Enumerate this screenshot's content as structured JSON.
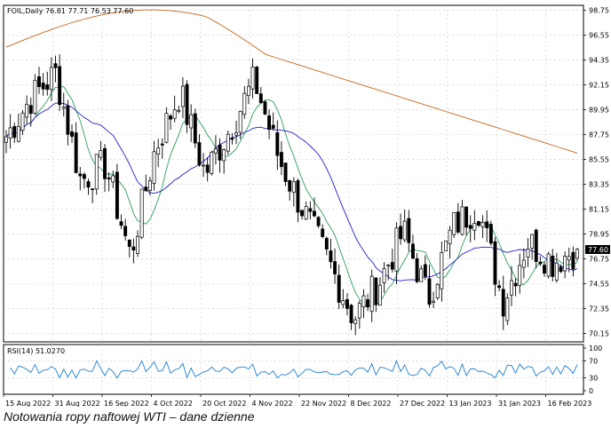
{
  "chart_data": {
    "type": "candlestick",
    "header": "FOIL,Daily  76.81 77.71 76.53 77.60",
    "symbol": "FOIL",
    "timeframe": "Daily",
    "last_ohlc": {
      "open": 76.81,
      "high": 77.71,
      "low": 76.53,
      "close": 77.6
    },
    "last_price_label": "77.60",
    "price_axis": {
      "ticks": [
        "98.75",
        "96.55",
        "94.35",
        "92.15",
        "89.95",
        "87.75",
        "85.55",
        "83.35",
        "81.15",
        "78.95",
        "76.75",
        "74.55",
        "72.35",
        "70.15"
      ],
      "ylim": [
        69.4,
        99.2
      ]
    },
    "x_axis": {
      "ticks": [
        "15 Aug 2022",
        "31 Aug 2022",
        "16 Sep 2022",
        "4 Oct 2022",
        "20 Oct 2022",
        "4 Nov 2022",
        "22 Nov 2022",
        "8 Dec 2022",
        "27 Dec 2022",
        "13 Jan 2023",
        "31 Jan 2023",
        "16 Feb 2023"
      ]
    },
    "grid": true,
    "rsi": {
      "label": "RSI(14) 51.0270",
      "ticks": [
        "100",
        "70",
        "30",
        "0"
      ],
      "ylim": [
        0,
        100
      ]
    },
    "candle_keys": [
      {
        "date": "15 Aug 2022",
        "close": 87.6
      },
      {
        "date": "23 Aug 2022",
        "close": 91.0
      },
      {
        "date": "31 Aug 2022",
        "close": 93.2
      },
      {
        "date": "8 Sep 2022",
        "close": 83.7
      },
      {
        "date": "16 Sep 2022",
        "close": 85.1
      },
      {
        "date": "26 Sep 2022",
        "close": 77.0
      },
      {
        "date": "4 Oct 2022",
        "close": 86.5
      },
      {
        "date": "10 Oct 2022",
        "close": 91.5
      },
      {
        "date": "20 Oct 2022",
        "close": 84.3
      },
      {
        "date": "28 Oct 2022",
        "close": 88.2
      },
      {
        "date": "4 Nov 2022",
        "close": 92.6
      },
      {
        "date": "14 Nov 2022",
        "close": 85.5
      },
      {
        "date": "22 Nov 2022",
        "close": 80.9
      },
      {
        "date": "30 Nov 2022",
        "close": 76.4
      },
      {
        "date": "8 Dec 2022",
        "close": 71.5
      },
      {
        "date": "16 Dec 2022",
        "close": 74.6
      },
      {
        "date": "27 Dec 2022",
        "close": 79.2
      },
      {
        "date": "3 Jan 2023",
        "close": 73.2
      },
      {
        "date": "13 Jan 2023",
        "close": 79.6
      },
      {
        "date": "20 Jan 2023",
        "close": 81.5
      },
      {
        "date": "31 Jan 2023",
        "close": 73.0
      },
      {
        "date": "8 Feb 2023",
        "close": 78.3
      },
      {
        "date": "16 Feb 2023",
        "close": 76.5
      },
      {
        "date": "24 Feb 2023",
        "close": 77.6
      }
    ],
    "colors": {
      "ma_fast": "#2e9e58",
      "ma_mid": "#1f1fcc",
      "ma_slow": "#c8651b",
      "rsi": "#1e7fd1",
      "bull": "#ffffff",
      "bear": "#000000"
    }
  },
  "caption": "Notowania ropy naftowej WTI – dane dzienne"
}
